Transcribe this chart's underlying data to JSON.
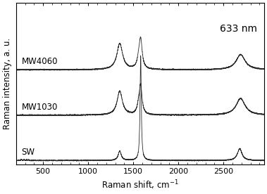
{
  "title": "633 nm",
  "xlabel": "Raman shift, cm$^{-1}$",
  "ylabel": "Raman intensity, a. u.",
  "xlim": [
    200,
    2950
  ],
  "ylim": [
    -0.08,
    3.3
  ],
  "xticks": [
    500,
    1000,
    1500,
    2000,
    2500
  ],
  "labels": [
    "MW4060",
    "MW1030",
    "SW"
  ],
  "offsets": [
    1.9,
    0.95,
    0.0
  ],
  "line_color": "#2a2a2a",
  "title_fontsize": 10,
  "label_fontsize": 8.5,
  "tick_fontsize": 8
}
